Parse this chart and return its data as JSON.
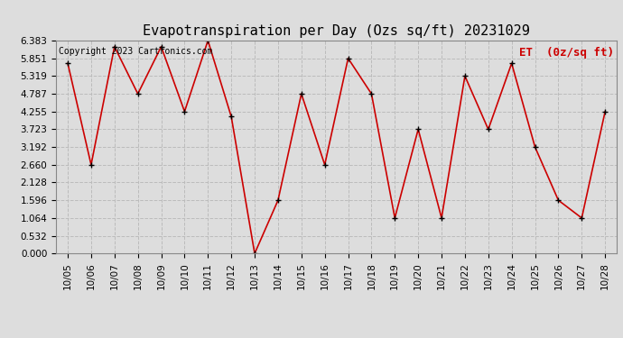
{
  "title": "Evapotranspiration per Day (Ozs sq/ft) 20231029",
  "legend_label": "ET  (0z/sq ft)",
  "copyright_text": "Copyright 2023 Cartronics.com",
  "x_labels": [
    "10/05",
    "10/06",
    "10/07",
    "10/08",
    "10/09",
    "10/10",
    "10/11",
    "10/12",
    "10/13",
    "10/14",
    "10/15",
    "10/16",
    "10/17",
    "10/18",
    "10/19",
    "10/20",
    "10/21",
    "10/22",
    "10/23",
    "10/24",
    "10/25",
    "10/26",
    "10/27",
    "10/28"
  ],
  "y_values": [
    5.7,
    2.66,
    6.2,
    4.787,
    6.2,
    4.255,
    6.383,
    4.1,
    0.0,
    1.596,
    4.787,
    2.66,
    5.851,
    4.787,
    1.064,
    3.723,
    1.064,
    5.319,
    3.723,
    5.7,
    3.192,
    1.596,
    1.064,
    4.255
  ],
  "y_ticks": [
    0.0,
    0.532,
    1.064,
    1.596,
    2.128,
    2.66,
    3.192,
    3.723,
    4.255,
    4.787,
    5.319,
    5.851,
    6.383
  ],
  "line_color": "#cc0000",
  "marker_color": "#000000",
  "bg_color": "#dddddd",
  "title_color": "#000000",
  "legend_color": "#cc0000",
  "copyright_color": "#000000",
  "grid_color": "#bbbbbb",
  "ylim": [
    0.0,
    6.383
  ],
  "title_fontsize": 11,
  "legend_fontsize": 9,
  "copyright_fontsize": 7,
  "tick_fontsize": 7.5
}
